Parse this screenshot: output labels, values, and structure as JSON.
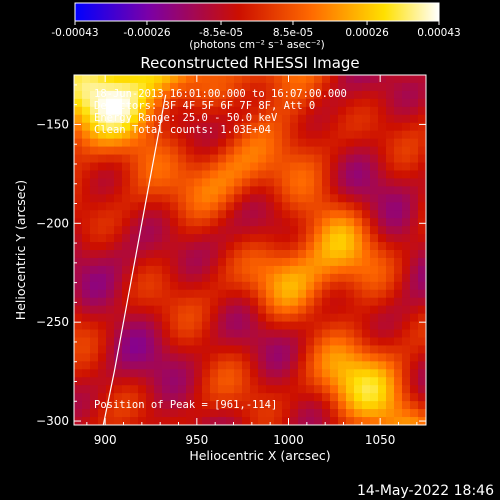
{
  "chart_data": {
    "type": "heatmap",
    "title": "Reconstructed RHESSI Image",
    "xlabel": "Heliocentric X (arcsec)",
    "ylabel": "Heliocentric Y (arcsec)",
    "xlim": [
      883,
      1075
    ],
    "ylim": [
      -302,
      -125
    ],
    "x_ticks": [
      900,
      950,
      1000,
      1050
    ],
    "y_ticks": [
      -150,
      -200,
      -250,
      -300
    ],
    "colorbar": {
      "range": [
        -0.00043,
        0.00043
      ],
      "tick_values": [
        -0.00043,
        -0.00026,
        -8.5e-05,
        8.5e-05,
        0.00026,
        0.00043
      ],
      "tick_labels": [
        "-0.00043",
        "-0.00026",
        "-8.5e-05",
        "8.5e-05",
        "0.00026",
        "0.00043"
      ],
      "unit_label": "(photons cm⁻² s⁻¹ asec⁻²)",
      "colors": [
        "#0000ff",
        "#7a00a8",
        "#cc0f00",
        "#ff6a00",
        "#ffe000",
        "#ffffff"
      ]
    },
    "annotations": [
      "18-Jun-2013 16:01:00.000 to 16:07:00.000",
      "Detectors: 3F 4F 5F 6F 7F 8F, Att 0",
      "Energy Range: 25.0 - 50.0 keV",
      "Clean    Total counts: 1.03E+04"
    ],
    "peak_label": "Position of Peak = [961,-114]",
    "limb_curve": {
      "x": [
        899,
        905,
        911,
        917,
        923,
        929,
        933
      ],
      "y": [
        -302,
        -275,
        -245,
        -215,
        -185,
        -155,
        -135
      ]
    }
  },
  "footer": {
    "date": "14-May-2022 18:46"
  }
}
